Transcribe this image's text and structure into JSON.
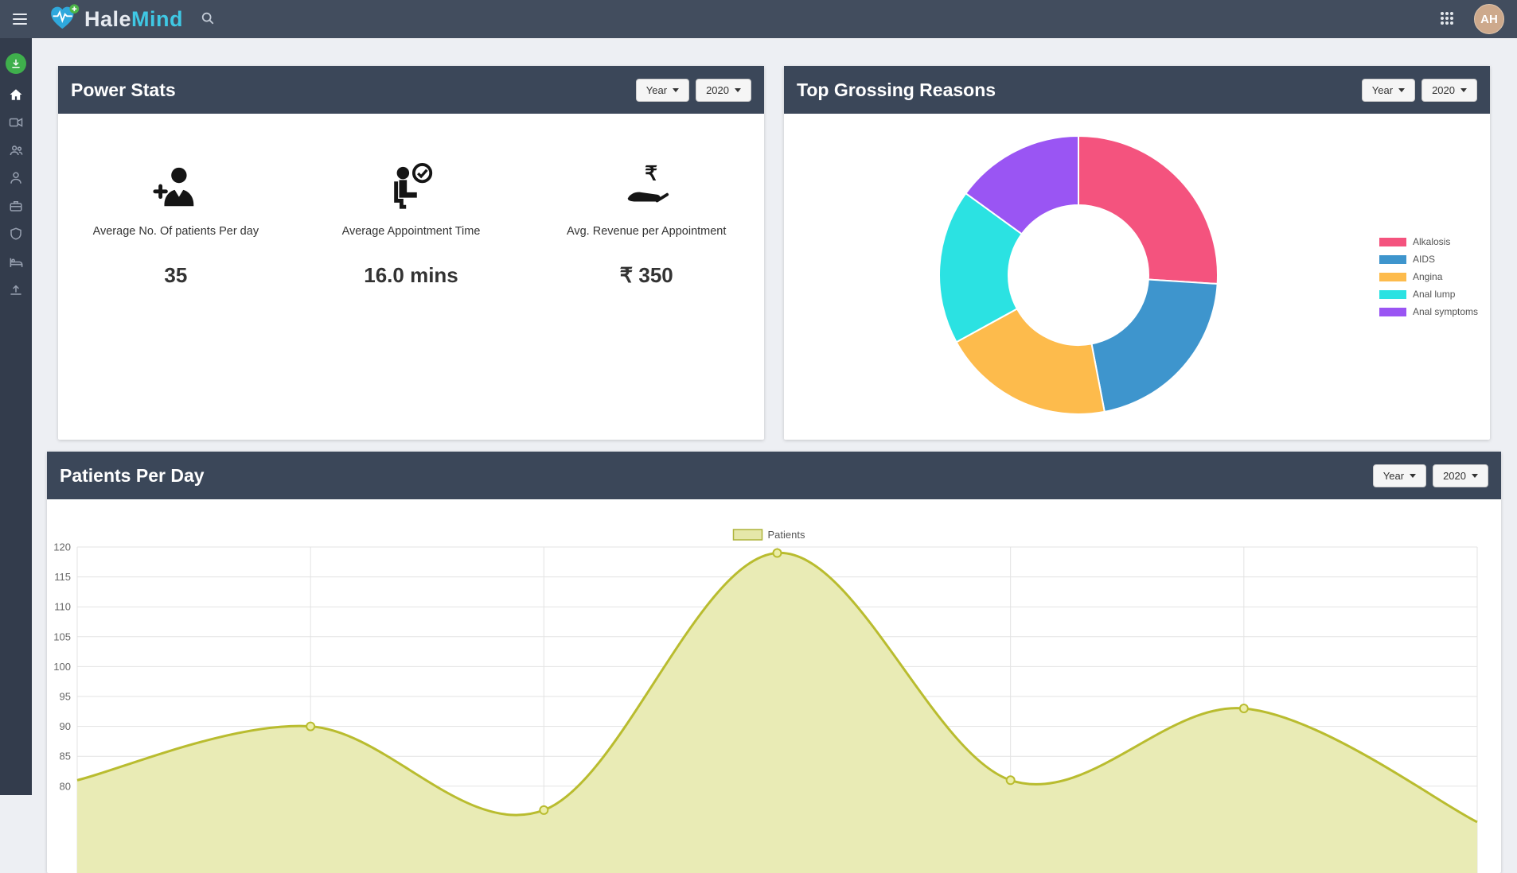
{
  "navbar": {
    "brand_hale": "Hale",
    "brand_mind": "Mind",
    "avatar_initials": "AH"
  },
  "sidebar": {
    "items": [
      "download",
      "home",
      "video",
      "patients-group",
      "doctor",
      "briefcase",
      "shield",
      "bed",
      "upload"
    ]
  },
  "cards": {
    "power_stats": {
      "title": "Power Stats",
      "filters": {
        "period": "Year",
        "year": "2020"
      },
      "stats": [
        {
          "label": "Average No. Of patients Per day",
          "value": "35"
        },
        {
          "label": "Average Appointment Time",
          "value": "16.0 mins"
        },
        {
          "label": "Avg. Revenue per Appointment",
          "value": "₹ 350"
        }
      ]
    },
    "top_grossing": {
      "title": "Top Grossing Reasons",
      "filters": {
        "period": "Year",
        "year": "2020"
      },
      "chart_data": {
        "type": "pie",
        "donut": true,
        "labels": [
          "Alkalosis",
          "AIDS",
          "Angina",
          "Anal lump",
          "Anal symptoms"
        ],
        "values": [
          26,
          21,
          20,
          18,
          15
        ],
        "colors": [
          "#F4537E",
          "#3E95CD",
          "#FDBB4C",
          "#2BE2E2",
          "#9A55F3"
        ],
        "legend_position": "right"
      }
    },
    "patients_per_day": {
      "title": "Patients Per Day",
      "filters": {
        "period": "Year",
        "year": "2020"
      },
      "chart_data": {
        "type": "area",
        "series": [
          {
            "name": "Patients",
            "values": [
              81,
              90,
              76,
              119,
              81,
              93,
              74
            ]
          }
        ],
        "yticks": [
          120,
          115,
          110,
          105,
          100,
          95,
          90,
          85,
          80
        ],
        "ylim_top": 120,
        "grid": true,
        "legend_position": "top",
        "line_color": "#B9BC2F",
        "fill_color": "#E9EBB5",
        "point_fill": "#ECEEA9",
        "legend_box_fill": "#E5E7A9",
        "legend_box_border": "#AEB43B"
      }
    }
  }
}
